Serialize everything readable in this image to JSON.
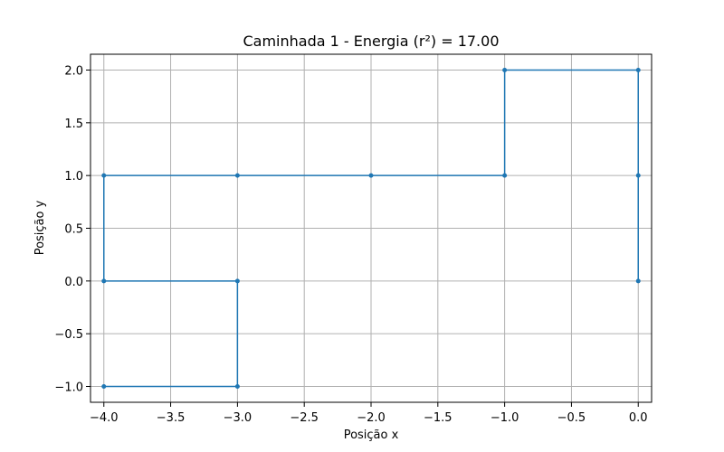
{
  "chart_data": {
    "type": "line",
    "title": "Caminhada 1 - Energia (r²) = 17.00",
    "xlabel": "Posição x",
    "ylabel": "Posição y",
    "xlim": [
      -4.1,
      0.1
    ],
    "ylim": [
      -1.15,
      2.15
    ],
    "xticks": [
      -4.0,
      -3.5,
      -3.0,
      -2.5,
      -2.0,
      -1.5,
      -1.0,
      -0.5,
      0.0
    ],
    "xtick_labels": [
      "−4.0",
      "−3.5",
      "−3.0",
      "−2.5",
      "−2.0",
      "−1.5",
      "−1.0",
      "−0.5",
      "0.0"
    ],
    "yticks": [
      -1.0,
      -0.5,
      0.0,
      0.5,
      1.0,
      1.5,
      2.0
    ],
    "ytick_labels": [
      "−1.0",
      "−0.5",
      "0.0",
      "0.5",
      "1.0",
      "1.5",
      "2.0"
    ],
    "grid": true,
    "series": [
      {
        "color": "#1f77b4",
        "x": [
          0,
          0,
          0,
          -1,
          -1,
          -2,
          -3,
          -4,
          -4,
          -3,
          -3,
          -4
        ],
        "y": [
          0,
          1,
          2,
          2,
          1,
          1,
          1,
          1,
          0,
          0,
          -1,
          -1
        ]
      }
    ]
  }
}
